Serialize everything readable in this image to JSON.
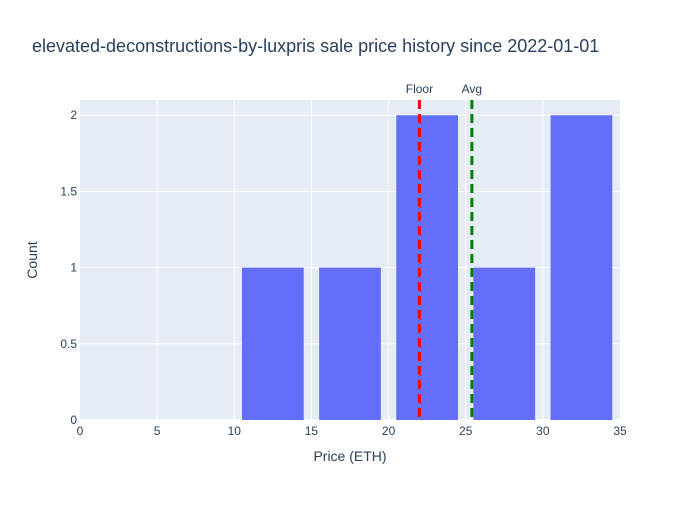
{
  "chart_data": {
    "type": "bar",
    "title": "elevated-deconstructions-by-luxpris sale price history since 2022-01-01",
    "xlabel": "Price (ETH)",
    "ylabel": "Count",
    "xlim": [
      0,
      35
    ],
    "ylim": [
      0,
      2.1
    ],
    "x_ticks": [
      "0",
      "5",
      "10",
      "15",
      "20",
      "25",
      "30",
      "35"
    ],
    "y_ticks": [
      "0",
      "0.5",
      "1",
      "1.5",
      "2"
    ],
    "bins": [
      {
        "start": 0,
        "end": 5,
        "count": 0
      },
      {
        "start": 5,
        "end": 10,
        "count": 0
      },
      {
        "start": 10,
        "end": 15,
        "count": 1
      },
      {
        "start": 15,
        "end": 20,
        "count": 1
      },
      {
        "start": 20,
        "end": 25,
        "count": 2
      },
      {
        "start": 25,
        "end": 30,
        "count": 1
      },
      {
        "start": 30,
        "end": 35,
        "count": 2
      }
    ],
    "bar_color": "#636efa",
    "grid": true,
    "reference_lines": [
      {
        "label": "Floor",
        "x": 22.0,
        "color": "#ff0000"
      },
      {
        "label": "Avg",
        "x": 25.4,
        "color": "#008000"
      }
    ]
  }
}
